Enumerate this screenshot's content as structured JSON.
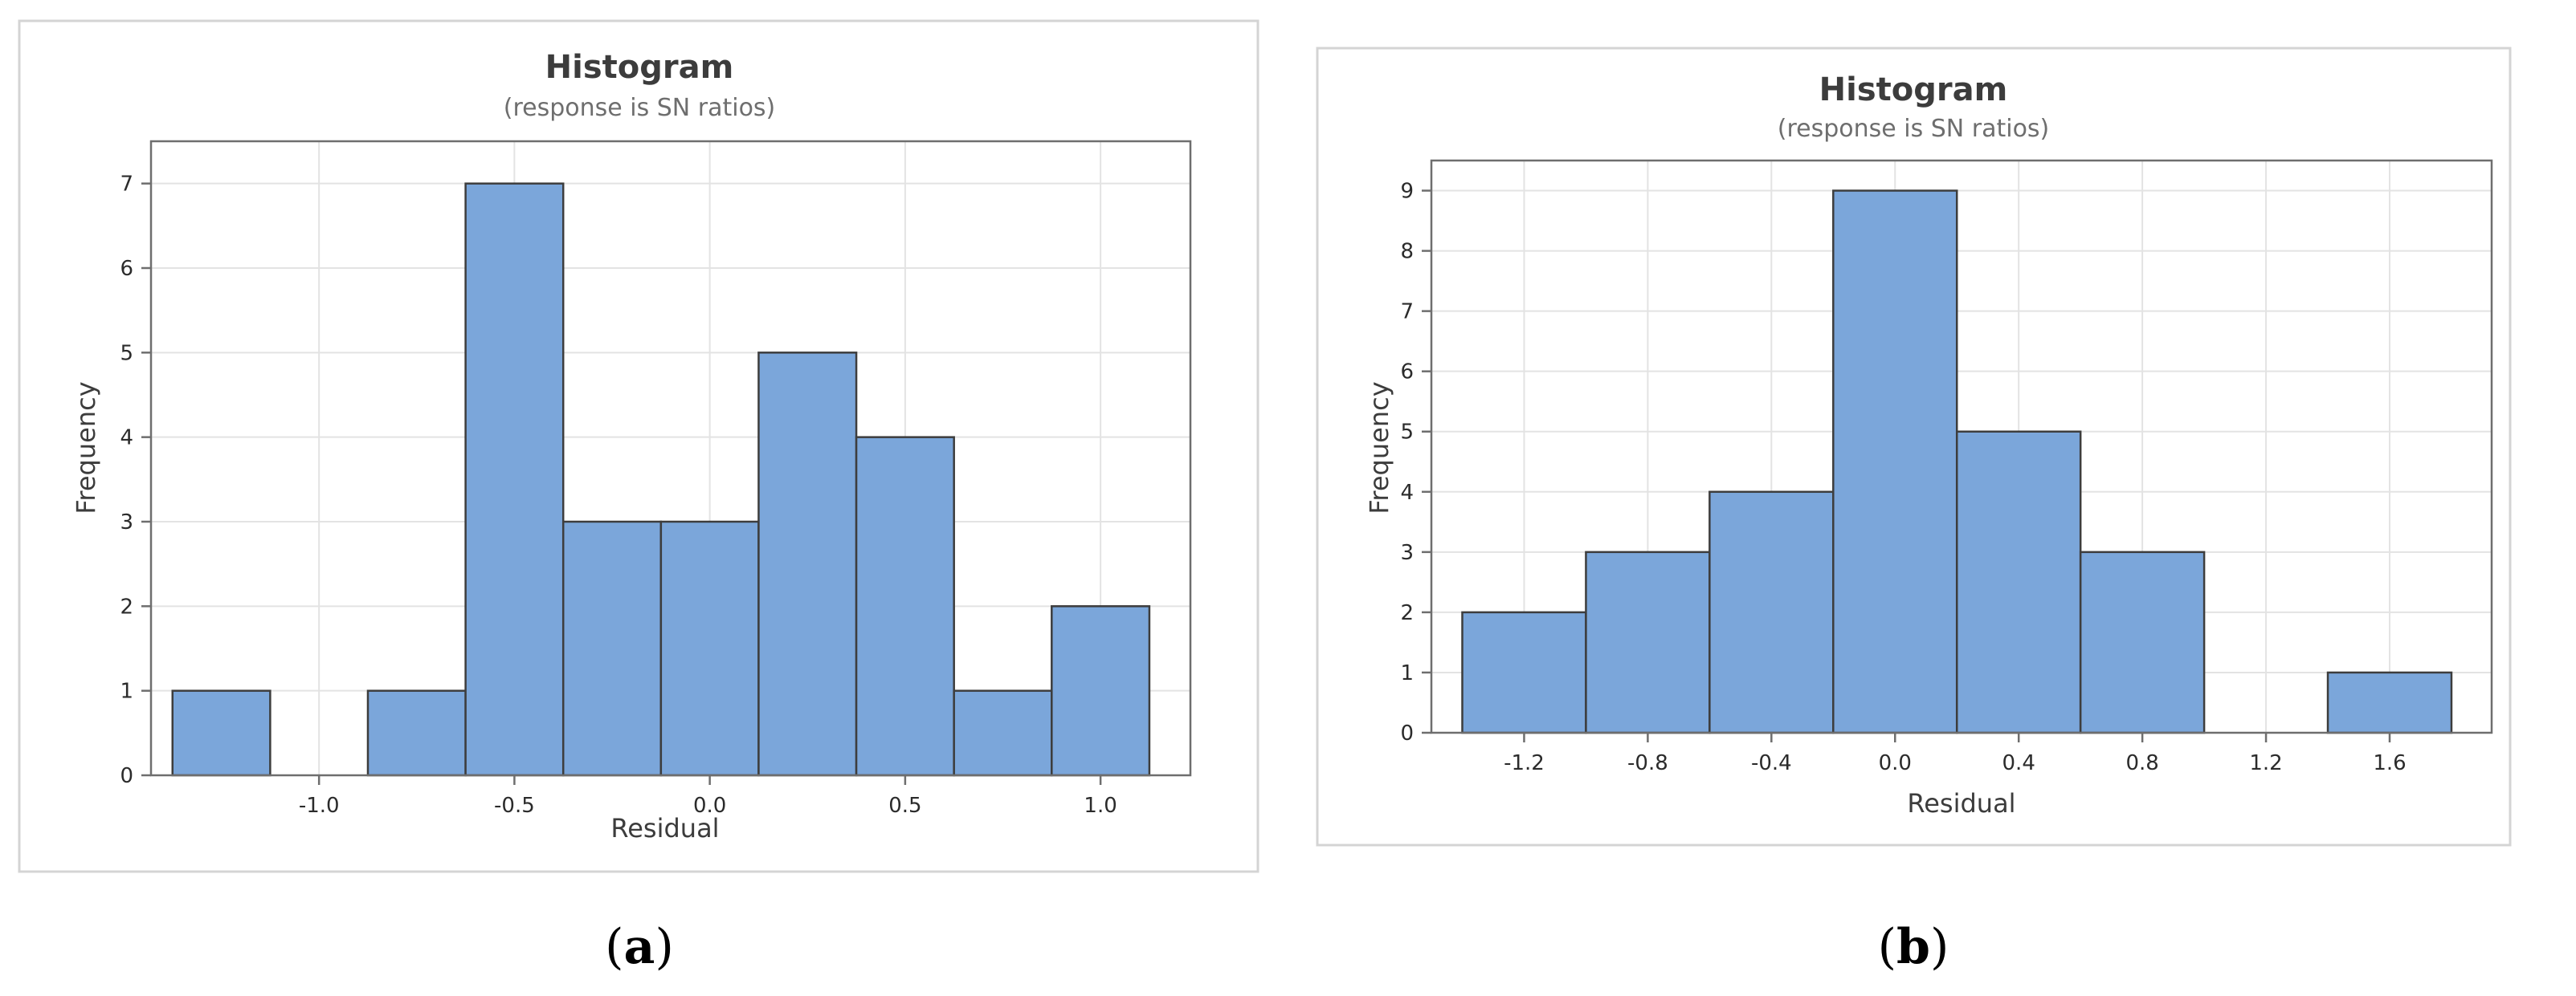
{
  "colors": {
    "bar_fill": "#7ba6da",
    "bar_stroke": "#3d3d3d",
    "grid": "#e3e3e3",
    "frame": "#6e6e6e"
  },
  "panels": [
    {
      "caption_letter": "a",
      "chart_data": {
        "type": "histogram",
        "title": "Histogram",
        "subtitle": "(response is SN ratios)",
        "xlabel": "Residual",
        "ylabel": "Frequency",
        "bin_width": 0.25,
        "bins": [
          {
            "from": -1.375,
            "to": -1.125,
            "count": 1
          },
          {
            "from": -1.125,
            "to": -0.875,
            "count": 0
          },
          {
            "from": -0.875,
            "to": -0.625,
            "count": 1
          },
          {
            "from": -0.625,
            "to": -0.375,
            "count": 7
          },
          {
            "from": -0.375,
            "to": -0.125,
            "count": 3
          },
          {
            "from": -0.125,
            "to": 0.125,
            "count": 3
          },
          {
            "from": 0.125,
            "to": 0.375,
            "count": 5
          },
          {
            "from": 0.375,
            "to": 0.625,
            "count": 4
          },
          {
            "from": 0.625,
            "to": 0.875,
            "count": 1
          },
          {
            "from": 0.875,
            "to": 1.125,
            "count": 2
          }
        ],
        "xlim": [
          -1.43,
          1.23
        ],
        "ylim": [
          0,
          7.5
        ],
        "x_ticks": [
          -1.0,
          -0.5,
          0.0,
          0.5,
          1.0
        ],
        "x_tick_labels": [
          "-1.0",
          "-0.5",
          "0.0",
          "0.5",
          "1.0"
        ],
        "y_ticks": [
          0,
          1,
          2,
          3,
          4,
          5,
          6,
          7
        ],
        "y_tick_labels": [
          "0",
          "1",
          "2",
          "3",
          "4",
          "5",
          "6",
          "7"
        ],
        "grid": true
      }
    },
    {
      "caption_letter": "b",
      "chart_data": {
        "type": "histogram",
        "title": "Histogram",
        "subtitle": "(response is SN ratios)",
        "xlabel": "Residual",
        "ylabel": "Frequency",
        "bin_width": 0.4,
        "bins": [
          {
            "from": -1.4,
            "to": -1.0,
            "count": 2
          },
          {
            "from": -1.0,
            "to": -0.6,
            "count": 3
          },
          {
            "from": -0.6,
            "to": -0.2,
            "count": 4
          },
          {
            "from": -0.2,
            "to": 0.2,
            "count": 9
          },
          {
            "from": 0.2,
            "to": 0.6,
            "count": 5
          },
          {
            "from": 0.6,
            "to": 1.0,
            "count": 3
          },
          {
            "from": 1.0,
            "to": 1.4,
            "count": 0
          },
          {
            "from": 1.4,
            "to": 1.8,
            "count": 1
          }
        ],
        "xlim": [
          -1.5,
          1.93
        ],
        "ylim": [
          0,
          9.5
        ],
        "x_ticks": [
          -1.2,
          -0.8,
          -0.4,
          0.0,
          0.4,
          0.8,
          1.2,
          1.6
        ],
        "x_tick_labels": [
          "-1.2",
          "-0.8",
          "-0.4",
          "0.0",
          "0.4",
          "0.8",
          "1.2",
          "1.6"
        ],
        "y_ticks": [
          0,
          1,
          2,
          3,
          4,
          5,
          6,
          7,
          8,
          9
        ],
        "y_tick_labels": [
          "0",
          "1",
          "2",
          "3",
          "4",
          "5",
          "6",
          "7",
          "8",
          "9"
        ],
        "grid": true
      }
    }
  ]
}
